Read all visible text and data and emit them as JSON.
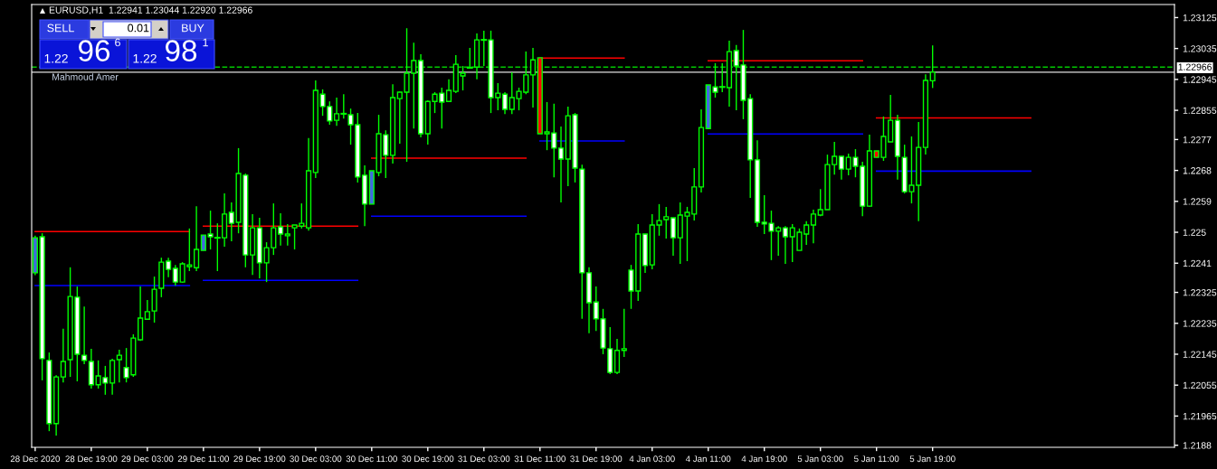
{
  "chart_data": {
    "type": "candlestick",
    "title": "EURUSD,H1  1.22941 1.23044 1.22920 1.22966",
    "annotations": [
      "SELL",
      "0.01",
      "BUY",
      "1.22",
      "96",
      "6",
      "1.22",
      "98",
      "1",
      "Mahmoud Amer"
    ],
    "ylim": [
      1.21874,
      1.23163
    ],
    "categories": [
      "28 Dec 2020",
      null,
      null,
      null,
      null,
      null,
      null,
      null,
      "28 Dec 19:00",
      null,
      null,
      null,
      null,
      null,
      null,
      null,
      "29 Dec 03:00",
      null,
      null,
      null,
      null,
      null,
      null,
      null,
      "29 Dec 11:00",
      null,
      null,
      null,
      null,
      null,
      null,
      null,
      "29 Dec 19:00",
      null,
      null,
      null,
      null,
      null,
      null,
      null,
      "30 Dec 03:00",
      null,
      null,
      null,
      null,
      null,
      null,
      null,
      "30 Dec 11:00",
      null,
      null,
      null,
      null,
      null,
      null,
      null,
      "30 Dec 19:00",
      null,
      null,
      null,
      null,
      null,
      null,
      null,
      "31 Dec 03:00",
      null,
      null,
      null,
      null,
      null,
      null,
      null,
      "31 Dec 11:00",
      null,
      null,
      null,
      null,
      null,
      null,
      null,
      "31 Dec 19:00",
      null,
      null,
      null,
      null,
      null,
      null,
      null,
      "4 Jan 03:00",
      null,
      null,
      null,
      null,
      null,
      null,
      null,
      "4 Jan 11:00",
      null,
      null,
      null,
      null,
      null,
      null,
      null,
      "4 Jan 19:00",
      null,
      null,
      null,
      null,
      null,
      null,
      null,
      "5 Jan 03:00",
      null,
      null,
      null,
      null,
      null,
      null,
      null,
      "5 Jan 11:00",
      null,
      null,
      null,
      null,
      null,
      null,
      null,
      "5 Jan 19:00",
      null,
      null,
      null,
      null,
      null,
      null,
      null,
      null,
      null,
      null,
      null,
      null,
      null,
      null,
      null,
      null,
      null,
      null,
      null,
      null,
      null,
      null,
      null,
      null,
      null,
      null,
      null,
      null,
      null,
      null,
      null,
      null,
      null,
      null
    ],
    "yticks": [
      1.23125,
      1.23035,
      1.22945,
      1.22855,
      1.2277,
      1.2268,
      1.2259,
      1.225,
      1.2241,
      1.22325,
      1.22235,
      1.22145,
      1.22055,
      1.21965,
      1.2188
    ],
    "ref_lines": [
      {
        "axis": "y",
        "value": 1.22981,
        "color": "#00c800",
        "line_style": "dashed"
      },
      {
        "axis": "y",
        "value": 1.22966,
        "color": "#a0a0a0",
        "label": "1.22966"
      }
    ],
    "series": [
      {
        "color": "#00ff00",
        "ohlc": [
          [
            1.22382,
            1.2249,
            1.22375,
            1.22484
          ],
          [
            1.22487,
            1.22497,
            1.22069,
            1.22132
          ],
          [
            1.22127,
            1.2215,
            1.21921,
            1.21943
          ],
          [
            1.21943,
            1.22084,
            1.21908,
            1.22079
          ],
          [
            1.22079,
            1.22219,
            1.22063,
            1.22124
          ],
          [
            1.22129,
            1.22398,
            1.22079,
            1.22313
          ],
          [
            1.22311,
            1.22342,
            1.22066,
            1.22145
          ],
          [
            1.22142,
            1.22284,
            1.22116,
            1.22127
          ],
          [
            1.22124,
            1.22161,
            1.22045,
            1.22056
          ],
          [
            1.22056,
            1.22127,
            1.22045,
            1.22082
          ],
          [
            1.22077,
            1.22111,
            1.22027,
            1.22061
          ],
          [
            1.22061,
            1.22132,
            1.22027,
            1.22127
          ],
          [
            1.22129,
            1.22158,
            1.22063,
            1.22142
          ],
          [
            1.22106,
            1.22163,
            1.22063,
            1.22077
          ],
          [
            1.22085,
            1.22203,
            1.22079,
            1.22192
          ],
          [
            1.22187,
            1.22342,
            1.22184,
            1.2225
          ],
          [
            1.22247,
            1.22303,
            1.22245,
            1.22269
          ],
          [
            1.22271,
            1.22371,
            1.22237,
            1.22334
          ],
          [
            1.22337,
            1.22426,
            1.22311,
            1.22413
          ],
          [
            1.22416,
            1.22426,
            1.22369,
            1.22392
          ],
          [
            1.22395,
            1.22405,
            1.22345,
            1.22355
          ],
          [
            1.22355,
            1.22413,
            1.22353,
            1.22408
          ],
          [
            1.224,
            1.22511,
            1.22387,
            1.22405
          ],
          [
            1.22397,
            1.22576,
            1.22387,
            1.2245
          ],
          [
            1.22447,
            1.22492,
            1.22447,
            1.22492
          ],
          [
            1.22495,
            1.22563,
            1.2245,
            1.22487
          ],
          [
            1.22484,
            1.22526,
            1.22387,
            1.22484
          ],
          [
            1.22484,
            1.22613,
            1.22458,
            1.22553
          ],
          [
            1.22558,
            1.22587,
            1.22474,
            1.22526
          ],
          [
            1.22529,
            1.22745,
            1.22497,
            1.22671
          ],
          [
            1.22666,
            1.22671,
            1.22398,
            1.22434
          ],
          [
            1.22434,
            1.22553,
            1.22376,
            1.22513
          ],
          [
            1.22513,
            1.22542,
            1.22366,
            1.22411
          ],
          [
            1.22411,
            1.22471,
            1.22355,
            1.22455
          ],
          [
            1.22455,
            1.22584,
            1.22434,
            1.22513
          ],
          [
            1.22516,
            1.22555,
            1.22461,
            1.22495
          ],
          [
            1.2249,
            1.22524,
            1.22461,
            1.22495
          ],
          [
            1.22513,
            1.22521,
            1.2245,
            1.22521
          ],
          [
            1.22518,
            1.22584,
            1.22511,
            1.22526
          ],
          [
            1.22513,
            1.22774,
            1.22505,
            1.22679
          ],
          [
            1.22674,
            1.22942,
            1.22658,
            1.22913
          ],
          [
            1.22902,
            1.22916,
            1.22839,
            1.22866
          ],
          [
            1.22866,
            1.22881,
            1.22813,
            1.22824
          ],
          [
            1.22826,
            1.22892,
            1.2281,
            1.22845
          ],
          [
            1.22845,
            1.22902,
            1.22831,
            1.22845
          ],
          [
            1.22842,
            1.2286,
            1.22755,
            1.22813
          ],
          [
            1.22813,
            1.22847,
            1.22645,
            1.22661
          ],
          [
            1.22666,
            1.22695,
            1.22518,
            1.22582
          ],
          [
            1.22582,
            1.22679,
            1.22582,
            1.22679
          ],
          [
            1.22674,
            1.22842,
            1.22663,
            1.22787
          ],
          [
            1.22784,
            1.22797,
            1.22658,
            1.22724
          ],
          [
            1.22724,
            1.22931,
            1.227,
            1.22892
          ],
          [
            1.22889,
            1.2291,
            1.22758,
            1.22908
          ],
          [
            1.22908,
            1.23094,
            1.22705,
            1.22963
          ],
          [
            1.22963,
            1.23052,
            1.22802,
            1.23
          ],
          [
            1.23,
            1.23018,
            1.22776,
            1.22787
          ],
          [
            1.22787,
            1.22884,
            1.22755,
            1.22881
          ],
          [
            1.22881,
            1.22908,
            1.22847,
            1.22902
          ],
          [
            1.22905,
            1.22921,
            1.22802,
            1.22879
          ],
          [
            1.22881,
            1.22945,
            1.22879,
            1.22913
          ],
          [
            1.2291,
            1.23016,
            1.22905,
            1.22989
          ],
          [
            1.22955,
            1.22984,
            1.22913,
            1.22963
          ],
          [
            1.22979,
            1.23037,
            1.22976,
            1.22979
          ],
          [
            1.22981,
            1.23079,
            1.22945,
            1.2306
          ],
          [
            1.2306,
            1.23087,
            1.22984,
            1.2306
          ],
          [
            1.2306,
            1.23087,
            1.22847,
            1.22892
          ],
          [
            1.22892,
            1.22934,
            1.22855,
            1.22905
          ],
          [
            1.22902,
            1.22908,
            1.22844,
            1.22858
          ],
          [
            1.22858,
            1.22966,
            1.22844,
            1.22892
          ],
          [
            1.22889,
            1.22921,
            1.22855,
            1.2291
          ],
          [
            1.22908,
            1.23026,
            1.22902,
            1.22958
          ],
          [
            1.22958,
            1.23037,
            1.22863,
            1.23002
          ],
          [
            1.23008,
            1.23008,
            1.22787,
            1.22787
          ],
          [
            1.22787,
            1.22879,
            1.22739,
            1.22792
          ],
          [
            1.22789,
            1.22874,
            1.2266,
            1.22745
          ],
          [
            1.22745,
            1.22808,
            1.22587,
            1.22713
          ],
          [
            1.22713,
            1.22866,
            1.22634,
            1.22839
          ],
          [
            1.22842,
            1.22847,
            1.22645,
            1.22687
          ],
          [
            1.22684,
            1.22697,
            1.22248,
            1.22382
          ],
          [
            1.22382,
            1.22398,
            1.22206,
            1.22295
          ],
          [
            1.22297,
            1.22342,
            1.22213,
            1.22248
          ],
          [
            1.22248,
            1.22277,
            1.22145,
            1.22163
          ],
          [
            1.22161,
            1.22224,
            1.22087,
            1.22092
          ],
          [
            1.22092,
            1.2219,
            1.22087,
            1.22156
          ],
          [
            1.22156,
            1.22277,
            1.22137,
            1.22161
          ],
          [
            1.2239,
            1.22405,
            1.22277,
            1.22329
          ],
          [
            1.22329,
            1.22524,
            1.223,
            1.22495
          ],
          [
            1.22495,
            1.22495,
            1.22382,
            1.22403
          ],
          [
            1.22405,
            1.22553,
            1.22392,
            1.22521
          ],
          [
            1.22521,
            1.22582,
            1.2249,
            1.22534
          ],
          [
            1.22537,
            1.22574,
            1.22482,
            1.22545
          ],
          [
            1.22542,
            1.22542,
            1.22432,
            1.22484
          ],
          [
            1.22484,
            1.22587,
            1.22408,
            1.2255
          ],
          [
            1.22547,
            1.22574,
            1.22416,
            1.22558
          ],
          [
            1.22553,
            1.22687,
            1.22534,
            1.22632
          ],
          [
            1.22632,
            1.22858,
            1.22616,
            1.22805
          ],
          [
            1.22802,
            1.22929,
            1.22802,
            1.22929
          ],
          [
            1.22923,
            1.22992,
            1.22892,
            1.22908
          ],
          [
            1.22923,
            1.22992,
            1.22908,
            1.22923
          ],
          [
            1.22921,
            1.23058,
            1.22866,
            1.23026
          ],
          [
            1.23029,
            1.23045,
            1.22855,
            1.22984
          ],
          [
            1.22987,
            1.23089,
            1.22829,
            1.22884
          ],
          [
            1.22889,
            1.22902,
            1.226,
            1.22711
          ],
          [
            1.22711,
            1.22768,
            1.22516,
            1.22529
          ],
          [
            1.22529,
            1.22608,
            1.22495,
            1.22524
          ],
          [
            1.22526,
            1.22563,
            1.22419,
            1.22503
          ],
          [
            1.22503,
            1.22518,
            1.22432,
            1.22513
          ],
          [
            1.22513,
            1.22518,
            1.22408,
            1.22487
          ],
          [
            1.22487,
            1.22524,
            1.22413,
            1.22513
          ],
          [
            1.22447,
            1.22511,
            1.22447,
            1.225
          ],
          [
            1.22495,
            1.22532,
            1.22463,
            1.22521
          ],
          [
            1.22521,
            1.22566,
            1.22468,
            1.22553
          ],
          [
            1.2255,
            1.22626,
            1.22547,
            1.22566
          ],
          [
            1.22566,
            1.22726,
            1.22566,
            1.22697
          ],
          [
            1.22697,
            1.22763,
            1.22668,
            1.22721
          ],
          [
            1.22721,
            1.22721,
            1.22653,
            1.22684
          ],
          [
            1.22684,
            1.22729,
            1.22666,
            1.22718
          ],
          [
            1.22718,
            1.22742,
            1.2266,
            1.22692
          ],
          [
            1.22692,
            1.22705,
            1.22547,
            1.22576
          ],
          [
            1.22576,
            1.22784,
            1.22574,
            1.22737
          ],
          [
            1.22737,
            1.22737,
            1.22718,
            1.22718
          ],
          [
            1.22718,
            1.22837,
            1.22708,
            1.22779
          ],
          [
            1.22763,
            1.229,
            1.22763,
            1.22826
          ],
          [
            1.22826,
            1.22842,
            1.22653,
            1.22721
          ],
          [
            1.22718,
            1.22755,
            1.22613,
            1.22618
          ],
          [
            1.22618,
            1.22779,
            1.22584,
            1.22637
          ],
          [
            1.22637,
            1.22821,
            1.22532,
            1.22747
          ],
          [
            1.22747,
            1.2296,
            1.22726,
            1.22942
          ],
          [
            1.22941,
            1.23044,
            1.2292,
            1.22966
          ],
          null,
          null,
          null,
          null,
          null,
          null,
          null,
          null,
          null,
          null,
          null,
          null,
          null,
          null,
          null,
          null,
          null,
          null,
          null,
          null,
          null,
          null,
          null,
          null,
          null,
          null,
          null,
          null,
          null,
          null,
          null,
          null,
          null,
          null
        ],
        "colors": [
          "#4169e1",
          "#ffffff",
          "#ffffff",
          "#000000",
          "#000000",
          "#000000",
          "#ffffff",
          "#ffffff",
          "#ffffff",
          "#000000",
          "#ffffff",
          "#000000",
          "#000000",
          "#ffffff",
          "#000000",
          "#000000",
          "#000000",
          "#000000",
          "#000000",
          "#ffffff",
          "#ffffff",
          "#000000",
          "#000000",
          "#000000",
          "#4169e1",
          "#ffffff",
          "#00ff00",
          "#000000",
          "#ffffff",
          "#000000",
          "#ffffff",
          "#000000",
          "#ffffff",
          "#000000",
          "#000000",
          "#ffffff",
          "#000000",
          "#000000",
          "#000000",
          "#000000",
          "#000000",
          "#ffffff",
          "#ffffff",
          "#000000",
          "#00ff00",
          "#ffffff",
          "#ffffff",
          "#ffffff",
          "#4169e1",
          "#000000",
          "#ffffff",
          "#000000",
          "#000000",
          "#000000",
          "#000000",
          "#ffffff",
          "#000000",
          "#000000",
          "#ffffff",
          "#000000",
          "#000000",
          "#000000",
          "#00ff00",
          "#000000",
          "#00ff00",
          "#ffffff",
          "#000000",
          "#ffffff",
          "#000000",
          "#000000",
          "#000000",
          "#000000",
          "#ff0000",
          "#000000",
          "#ffffff",
          "#ffffff",
          "#000000",
          "#ffffff",
          "#ffffff",
          "#ffffff",
          "#ffffff",
          "#ffffff",
          "#ffffff",
          "#000000",
          "#000000",
          "#ffffff",
          "#000000",
          "#ffffff",
          "#000000",
          "#000000",
          "#000000",
          "#ffffff",
          "#000000",
          "#000000",
          "#000000",
          "#000000",
          "#4169e1",
          "#ffffff",
          "#00ff00",
          "#000000",
          "#ffffff",
          "#ffffff",
          "#ffffff",
          "#ffffff",
          "#ffffff",
          "#ffffff",
          "#000000",
          "#ffffff",
          "#000000",
          "#000000",
          "#000000",
          "#000000",
          "#000000",
          "#000000",
          "#000000",
          "#ffffff",
          "#000000",
          "#ffffff",
          "#ffffff",
          "#000000",
          "#ff0000",
          "#000000",
          "#000000",
          "#ffffff",
          "#ffffff",
          "#000000",
          "#000000",
          "#000000",
          "#000000",
          null,
          null,
          null,
          null,
          null,
          null,
          null,
          null,
          null,
          null,
          null,
          null,
          null,
          null,
          null,
          null,
          null,
          null,
          null,
          null,
          null,
          null,
          null,
          null,
          null,
          null,
          null,
          null,
          null,
          null,
          null,
          null,
          null,
          null
        ]
      },
      {
        "type": "line",
        "color": "#ff0000",
        "values": [
          1.22502,
          1.22502,
          1.22502,
          1.22502,
          1.22502,
          1.22502,
          1.22502,
          1.22502,
          1.22502,
          1.22502,
          1.22502,
          1.22502,
          1.22502,
          1.22502,
          1.22502,
          1.22502,
          1.22502,
          1.22502,
          1.22502,
          1.22502,
          1.22502,
          1.22502,
          1.22502,
          null,
          1.22518,
          1.22518,
          1.22518,
          1.22518,
          1.22518,
          1.22518,
          1.22518,
          1.22518,
          1.22518,
          1.22518,
          1.22518,
          1.22518,
          1.22518,
          1.22518,
          1.22518,
          1.22518,
          1.22518,
          1.22518,
          1.22518,
          1.22518,
          1.22518,
          1.22518,
          1.22518,
          null,
          1.22716,
          1.22716,
          1.22716,
          1.22716,
          1.22716,
          1.22716,
          1.22716,
          1.22716,
          1.22716,
          1.22716,
          1.22716,
          1.22716,
          1.22716,
          1.22716,
          1.22716,
          1.22716,
          1.22716,
          1.22716,
          1.22716,
          1.22716,
          1.22716,
          1.22716,
          1.22716,
          null,
          1.23007,
          1.23007,
          1.23007,
          1.23007,
          1.23007,
          1.23007,
          1.23007,
          1.23007,
          1.23007,
          1.23007,
          1.23007,
          1.23007,
          1.23007,
          null,
          null,
          null,
          null,
          null,
          null,
          null,
          null,
          null,
          null,
          null,
          1.22999,
          1.22999,
          1.22999,
          1.22999,
          1.22999,
          1.22999,
          1.22999,
          1.22999,
          1.22999,
          1.22999,
          1.22999,
          1.22999,
          1.22999,
          1.22999,
          1.22999,
          1.22999,
          1.22999,
          1.22999,
          1.22999,
          1.22999,
          1.22999,
          1.22999,
          1.22999,
          null,
          1.22833,
          1.22833,
          1.22833,
          1.22833,
          1.22833,
          1.22833,
          1.22833,
          1.22833,
          1.22833,
          1.22833,
          1.22833,
          1.22833,
          1.22833,
          1.22833,
          1.22833,
          1.22833,
          1.22833,
          1.22833,
          1.22833,
          1.22833,
          1.22833,
          1.22833,
          1.22833,
          null,
          null,
          null,
          null,
          null,
          null,
          null,
          null,
          null,
          null,
          null,
          null,
          null,
          null,
          null,
          null,
          null,
          null,
          null,
          null
        ]
      },
      {
        "type": "line",
        "color": "#0000ff",
        "values": [
          1.22345,
          1.22345,
          1.22345,
          1.22345,
          1.22345,
          1.22345,
          1.22345,
          1.22345,
          1.22345,
          1.22345,
          1.22345,
          1.22345,
          1.22345,
          1.22345,
          1.22345,
          1.22345,
          1.22345,
          1.22345,
          1.22345,
          1.22345,
          1.22345,
          1.22345,
          1.22345,
          null,
          1.2236,
          1.2236,
          1.2236,
          1.2236,
          1.2236,
          1.2236,
          1.2236,
          1.2236,
          1.2236,
          1.2236,
          1.2236,
          1.2236,
          1.2236,
          1.2236,
          1.2236,
          1.2236,
          1.2236,
          1.2236,
          1.2236,
          1.2236,
          1.2236,
          1.2236,
          1.2236,
          null,
          1.22547,
          1.22547,
          1.22547,
          1.22547,
          1.22547,
          1.22547,
          1.22547,
          1.22547,
          1.22547,
          1.22547,
          1.22547,
          1.22547,
          1.22547,
          1.22547,
          1.22547,
          1.22547,
          1.22547,
          1.22547,
          1.22547,
          1.22547,
          1.22547,
          1.22547,
          1.22547,
          null,
          1.22766,
          1.22766,
          1.22766,
          1.22766,
          1.22766,
          1.22766,
          1.22766,
          1.22766,
          1.22766,
          1.22766,
          1.22766,
          1.22766,
          1.22766,
          null,
          null,
          null,
          null,
          null,
          null,
          null,
          null,
          null,
          null,
          null,
          1.22786,
          1.22786,
          1.22786,
          1.22786,
          1.22786,
          1.22786,
          1.22786,
          1.22786,
          1.22786,
          1.22786,
          1.22786,
          1.22786,
          1.22786,
          1.22786,
          1.22786,
          1.22786,
          1.22786,
          1.22786,
          1.22786,
          1.22786,
          1.22786,
          1.22786,
          1.22786,
          null,
          1.22678,
          1.22678,
          1.22678,
          1.22678,
          1.22678,
          1.22678,
          1.22678,
          1.22678,
          1.22678,
          1.22678,
          1.22678,
          1.22678,
          1.22678,
          1.22678,
          1.22678,
          1.22678,
          1.22678,
          1.22678,
          1.22678,
          1.22678,
          1.22678,
          1.22678,
          1.22678,
          null,
          null,
          null,
          null,
          null,
          null,
          null,
          null,
          null,
          null,
          null,
          null,
          null,
          null,
          null,
          null,
          null,
          null,
          null,
          null
        ]
      }
    ]
  }
}
